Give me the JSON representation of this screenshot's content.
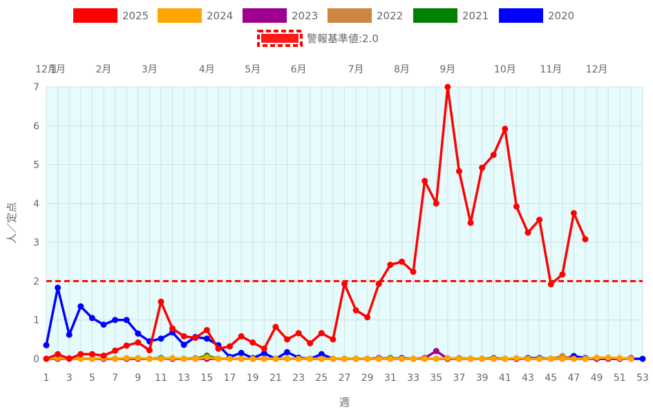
{
  "chart_data": {
    "type": "line",
    "xlabel": "週",
    "ylabel": "人／定点",
    "ylim": [
      0,
      7
    ],
    "yticks": [
      "0",
      "1",
      "2",
      "3",
      "4",
      "5",
      "6",
      "7"
    ],
    "xlim": [
      1,
      53
    ],
    "xticks": [
      "1",
      "3",
      "5",
      "7",
      "9",
      "11",
      "13",
      "15",
      "17",
      "19",
      "21",
      "23",
      "25",
      "27",
      "29",
      "31",
      "33",
      "35",
      "37",
      "39",
      "41",
      "43",
      "45",
      "47",
      "49",
      "51",
      "53"
    ],
    "month_axis": [
      {
        "label": "12月",
        "week": 1
      },
      {
        "label": "1月",
        "week": 2
      },
      {
        "label": "2月",
        "week": 6
      },
      {
        "label": "3月",
        "week": 10
      },
      {
        "label": "4月",
        "week": 15
      },
      {
        "label": "5月",
        "week": 19
      },
      {
        "label": "6月",
        "week": 23
      },
      {
        "label": "7月",
        "week": 28
      },
      {
        "label": "8月",
        "week": 32
      },
      {
        "label": "9月",
        "week": 36
      },
      {
        "label": "10月",
        "week": 41
      },
      {
        "label": "11月",
        "week": 45
      },
      {
        "label": "12月",
        "week": 49
      }
    ],
    "grid": true,
    "plot_background": "#e6fbfc",
    "legend_position": "top",
    "threshold": {
      "label": "警報基準値:2.0",
      "value": 2.0,
      "color": "#ff0000"
    },
    "series": [
      {
        "name": "2020",
        "color": "#0000ff",
        "x": [
          1,
          2,
          3,
          4,
          5,
          6,
          7,
          8,
          9,
          10,
          11,
          12,
          13,
          14,
          15,
          16,
          17,
          18,
          19,
          20,
          21,
          22,
          23,
          24,
          25,
          26,
          27,
          28,
          29,
          30,
          31,
          32,
          33,
          34,
          35,
          36,
          37,
          38,
          39,
          40,
          41,
          42,
          43,
          44,
          45,
          46,
          47,
          48,
          49,
          50,
          51,
          52,
          53
        ],
        "values": [
          0.35,
          1.83,
          0.62,
          1.35,
          1.05,
          0.88,
          1.0,
          1.0,
          0.65,
          0.45,
          0.52,
          0.68,
          0.36,
          0.56,
          0.52,
          0.35,
          0.05,
          0.15,
          0.02,
          0.14,
          0.0,
          0.17,
          0.03,
          0.0,
          0.12,
          0.0,
          0.0,
          0.0,
          0.0,
          0.0,
          0.0,
          0.02,
          0.0,
          0.0,
          0.0,
          0.0,
          0.0,
          0.0,
          0.0,
          0.0,
          0.0,
          0.0,
          0.02,
          0.02,
          0.0,
          0.0,
          0.07,
          0.02,
          0.0,
          0.0,
          0.0,
          0.0,
          0.0
        ]
      },
      {
        "name": "2021",
        "color": "#008000",
        "x": [
          1,
          2,
          3,
          4,
          5,
          6,
          7,
          8,
          9,
          10,
          11,
          12,
          13,
          14,
          15,
          16,
          17,
          18,
          19,
          20,
          21,
          22,
          23,
          24,
          25,
          26,
          27,
          28,
          29,
          30,
          31,
          32,
          33,
          34,
          35,
          36,
          37,
          38,
          39,
          40,
          41,
          42,
          43,
          44,
          45,
          46,
          47,
          48,
          49,
          50,
          51,
          52
        ],
        "values": [
          0.0,
          0.0,
          0.0,
          0.0,
          0.0,
          0.0,
          0.0,
          0.0,
          0.0,
          0.0,
          0.02,
          0.0,
          0.0,
          0.0,
          0.08,
          0.0,
          0.0,
          0.0,
          0.0,
          0.0,
          0.0,
          0.0,
          0.0,
          0.0,
          0.0,
          0.0,
          0.0,
          0.0,
          0.0,
          0.0,
          0.02,
          0.0,
          0.0,
          0.0,
          0.0,
          0.0,
          0.0,
          0.0,
          0.0,
          0.0,
          0.0,
          0.0,
          0.0,
          0.0,
          0.0,
          0.0,
          0.0,
          0.0,
          0.0,
          0.0,
          0.0,
          0.0
        ]
      },
      {
        "name": "2022",
        "color": "#cd853f",
        "x": [
          1,
          2,
          3,
          4,
          5,
          6,
          7,
          8,
          9,
          10,
          11,
          12,
          13,
          14,
          15,
          16,
          17,
          18,
          19,
          20,
          21,
          22,
          23,
          24,
          25,
          26,
          27,
          28,
          29,
          30,
          31,
          32,
          33,
          34,
          35,
          36,
          37,
          38,
          39,
          40,
          41,
          42,
          43,
          44,
          45,
          46,
          47,
          48,
          49,
          50,
          51,
          52
        ],
        "values": [
          0.0,
          0.0,
          0.02,
          0.0,
          0.0,
          0.0,
          0.0,
          0.0,
          0.0,
          0.0,
          0.0,
          0.0,
          0.0,
          0.02,
          0.0,
          0.0,
          0.0,
          0.0,
          0.0,
          0.0,
          0.0,
          0.0,
          0.0,
          0.0,
          0.0,
          0.0,
          0.0,
          0.0,
          0.0,
          0.0,
          0.0,
          0.0,
          0.0,
          0.0,
          0.0,
          0.0,
          0.02,
          0.0,
          0.0,
          0.0,
          0.0,
          0.0,
          0.0,
          0.0,
          0.0,
          0.07,
          0.0,
          0.0,
          0.0,
          0.0,
          0.0,
          0.0
        ]
      },
      {
        "name": "2023",
        "color": "#a0008f",
        "x": [
          1,
          2,
          3,
          4,
          5,
          6,
          7,
          8,
          9,
          10,
          11,
          12,
          13,
          14,
          15,
          16,
          17,
          18,
          19,
          20,
          21,
          22,
          23,
          24,
          25,
          26,
          27,
          28,
          29,
          30,
          31,
          32,
          33,
          34,
          35,
          36,
          37,
          38,
          39,
          40,
          41,
          42,
          43,
          44,
          45,
          46,
          47,
          48,
          49,
          50,
          51,
          52
        ],
        "values": [
          0.0,
          0.0,
          0.0,
          0.0,
          0.0,
          0.0,
          0.0,
          0.0,
          0.0,
          0.0,
          0.0,
          0.0,
          0.0,
          0.0,
          0.0,
          0.0,
          0.0,
          0.0,
          0.0,
          0.0,
          0.0,
          0.0,
          0.0,
          0.0,
          0.0,
          0.0,
          0.0,
          0.0,
          0.0,
          0.02,
          0.0,
          0.0,
          0.0,
          0.02,
          0.2,
          0.0,
          0.0,
          0.0,
          0.0,
          0.02,
          0.0,
          0.0,
          0.0,
          0.0,
          0.0,
          0.0,
          0.0,
          0.0,
          0.0,
          0.0,
          0.0,
          0.02
        ]
      },
      {
        "name": "2024",
        "color": "#ffa500",
        "x": [
          1,
          2,
          3,
          4,
          5,
          6,
          7,
          8,
          9,
          10,
          11,
          12,
          13,
          14,
          15,
          16,
          17,
          18,
          19,
          20,
          21,
          22,
          23,
          24,
          25,
          26,
          27,
          28,
          29,
          30,
          31,
          32,
          33,
          34,
          35,
          36,
          37,
          38,
          39,
          40,
          41,
          42,
          43,
          44,
          45,
          46,
          47,
          48,
          49,
          50,
          51,
          52
        ],
        "values": [
          0.0,
          0.02,
          0.0,
          0.0,
          0.0,
          0.02,
          0.0,
          0.02,
          0.02,
          0.0,
          0.0,
          0.02,
          0.0,
          0.0,
          0.04,
          0.0,
          0.0,
          0.0,
          0.0,
          0.0,
          0.0,
          0.0,
          0.0,
          0.0,
          0.0,
          0.0,
          0.0,
          0.0,
          0.0,
          0.0,
          0.0,
          0.0,
          0.0,
          0.0,
          0.0,
          0.02,
          0.0,
          0.0,
          0.0,
          0.0,
          0.0,
          0.02,
          0.0,
          0.0,
          0.0,
          0.0,
          0.0,
          0.0,
          0.03,
          0.03,
          0.02,
          0.0
        ]
      },
      {
        "name": "2025",
        "color": "#ff0000",
        "x": [
          1,
          2,
          3,
          4,
          5,
          6,
          7,
          8,
          9,
          10,
          11,
          12,
          13,
          14,
          15,
          16,
          17,
          18,
          19,
          20,
          21,
          22,
          23,
          24,
          25,
          26,
          27,
          28,
          29,
          30,
          31,
          32,
          33,
          34,
          35,
          36,
          37,
          38,
          39,
          40,
          41,
          42,
          43,
          44,
          45,
          46,
          47,
          48
        ],
        "values": [
          0.0,
          0.12,
          0.0,
          0.12,
          0.12,
          0.08,
          0.21,
          0.34,
          0.42,
          0.22,
          1.47,
          0.78,
          0.58,
          0.54,
          0.74,
          0.26,
          0.32,
          0.58,
          0.42,
          0.26,
          0.82,
          0.5,
          0.66,
          0.4,
          0.66,
          0.5,
          1.93,
          1.25,
          1.07,
          1.93,
          2.42,
          2.5,
          2.24,
          4.58,
          4.0,
          7.0,
          4.83,
          3.5,
          4.92,
          5.25,
          5.92,
          3.92,
          3.25,
          3.58,
          1.92,
          2.17,
          3.75,
          3.08
        ]
      }
    ]
  }
}
